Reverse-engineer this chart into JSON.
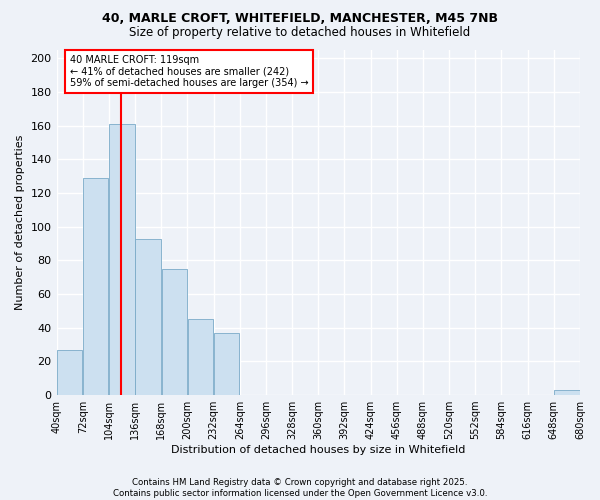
{
  "title_line1": "40, MARLE CROFT, WHITEFIELD, MANCHESTER, M45 7NB",
  "title_line2": "Size of property relative to detached houses in Whitefield",
  "xlabel": "Distribution of detached houses by size in Whitefield",
  "ylabel": "Number of detached properties",
  "bar_color": "#cce0f0",
  "bar_edge_color": "#7aaac8",
  "background_color": "#eef2f8",
  "grid_color": "#ffffff",
  "vline_x": 119,
  "vline_color": "red",
  "annotation_text": "40 MARLE CROFT: 119sqm\n← 41% of detached houses are smaller (242)\n59% of semi-detached houses are larger (354) →",
  "annotation_box_color": "white",
  "annotation_box_edge": "red",
  "bin_edges": [
    40,
    72,
    104,
    136,
    168,
    200,
    232,
    264,
    296,
    328,
    360,
    392,
    424,
    456,
    488,
    520,
    552,
    584,
    616,
    648,
    680
  ],
  "bin_values": [
    27,
    129,
    161,
    93,
    75,
    45,
    37,
    0,
    0,
    0,
    0,
    0,
    0,
    0,
    0,
    0,
    0,
    0,
    0,
    3
  ],
  "ylim": [
    0,
    205
  ],
  "yticks": [
    0,
    20,
    40,
    60,
    80,
    100,
    120,
    140,
    160,
    180,
    200
  ],
  "footer_text": "Contains HM Land Registry data © Crown copyright and database right 2025.\nContains public sector information licensed under the Open Government Licence v3.0.",
  "tick_labels": [
    "40sqm",
    "72sqm",
    "104sqm",
    "136sqm",
    "168sqm",
    "200sqm",
    "232sqm",
    "264sqm",
    "296sqm",
    "328sqm",
    "360sqm",
    "392sqm",
    "424sqm",
    "456sqm",
    "488sqm",
    "520sqm",
    "552sqm",
    "584sqm",
    "616sqm",
    "648sqm",
    "680sqm"
  ],
  "title_fontsize": 9,
  "subtitle_fontsize": 8.5,
  "xlabel_fontsize": 8,
  "ylabel_fontsize": 8,
  "tick_fontsize": 7,
  "footer_fontsize": 6.2
}
